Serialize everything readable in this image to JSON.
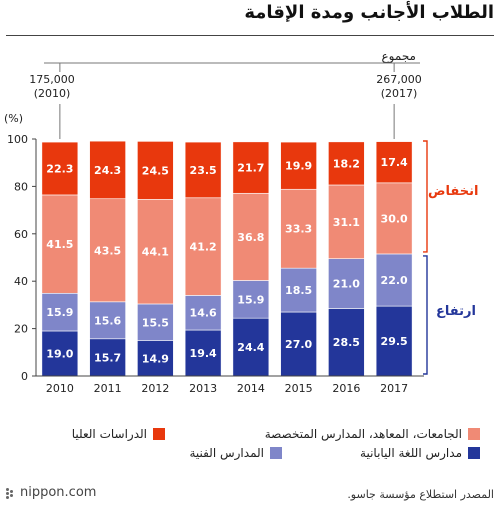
{
  "title": "الطلاب الأجانب ومدة الإقامة",
  "subhead": "مجموع",
  "totals": {
    "first": {
      "value": "175,000",
      "year": "(2010)"
    },
    "last": {
      "value": "267,000",
      "year": "(2017)"
    }
  },
  "side_labels": {
    "decrease": "انخفاض",
    "increase": "ارتفاع",
    "decrease_color": "#e8380d",
    "increase_color": "#23369a"
  },
  "legend": [
    {
      "label": "الدراسات العليا",
      "color": "#e8380d"
    },
    {
      "label": "الجامعات، المعاهد، المدارس المتخصصة",
      "color": "#f08a75"
    },
    {
      "label": "المدارس الفنية",
      "color": "#7f86c9"
    },
    {
      "label": "مدارس اللغة اليابانية",
      "color": "#23369a"
    }
  ],
  "footer": {
    "logo": "nippon.com",
    "source": "المصدر استطلاع مؤسسة جاسو."
  },
  "chart_data": {
    "type": "bar",
    "stacked": true,
    "categories": [
      "2010",
      "2011",
      "2012",
      "2013",
      "2014",
      "2015",
      "2016",
      "2017"
    ],
    "ylabel": "(%)",
    "ylim": [
      0,
      100
    ],
    "yticks": [
      0,
      20,
      40,
      60,
      80,
      100
    ],
    "grid": false,
    "series": [
      {
        "name": "مدارس اللغة اليابانية",
        "color": "#23369a",
        "values": [
          19.0,
          15.7,
          14.9,
          19.4,
          24.4,
          27.0,
          28.5,
          29.5
        ]
      },
      {
        "name": "المدارس الفنية",
        "color": "#7f86c9",
        "values": [
          15.9,
          15.6,
          15.5,
          14.6,
          15.9,
          18.5,
          21.0,
          22.0
        ]
      },
      {
        "name": "الجامعات، المعاهد، المدارس المتخصصة",
        "color": "#f08a75",
        "values": [
          41.5,
          43.5,
          44.1,
          41.2,
          36.8,
          33.3,
          31.1,
          30.0
        ]
      },
      {
        "name": "الدراسات العليا",
        "color": "#e8380d",
        "values": [
          22.3,
          24.3,
          24.5,
          23.5,
          21.7,
          19.9,
          18.2,
          17.4
        ]
      }
    ]
  }
}
